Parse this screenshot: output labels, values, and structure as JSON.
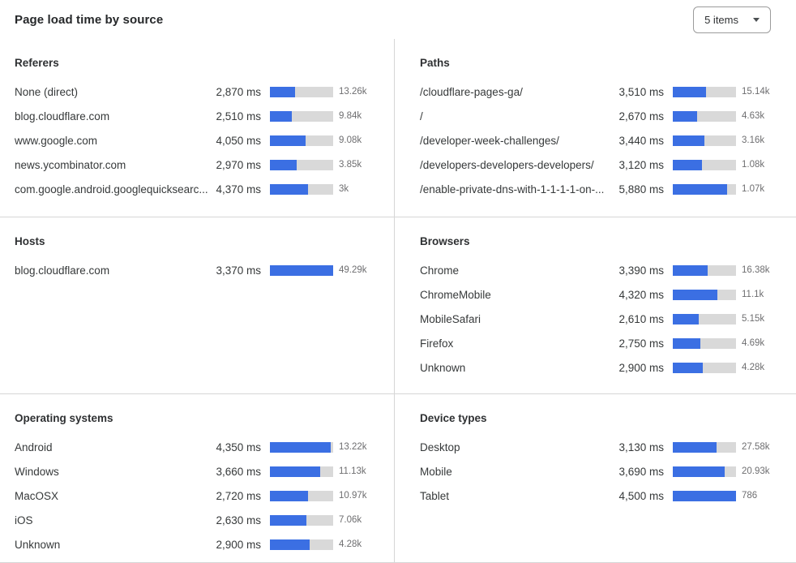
{
  "header": {
    "title": "Page load time by source",
    "dropdown": {
      "value": "5 items"
    }
  },
  "colors": {
    "bar_fill": "#3b6fe3",
    "bar_track": "#d9d9d9",
    "divider": "#d6d6d6",
    "text_primary": "#36393a",
    "text_secondary": "#6e6e70"
  },
  "sections": [
    {
      "id": "referers",
      "title": "Referers",
      "rows": [
        {
          "label": "None (direct)",
          "value": "2,870 ms",
          "count": "13.26k",
          "bar_pct": 40
        },
        {
          "label": "blog.cloudflare.com",
          "value": "2,510 ms",
          "count": "9.84k",
          "bar_pct": 35
        },
        {
          "label": "www.google.com",
          "value": "4,050 ms",
          "count": "9.08k",
          "bar_pct": 56
        },
        {
          "label": "news.ycombinator.com",
          "value": "2,970 ms",
          "count": "3.85k",
          "bar_pct": 42
        },
        {
          "label": "com.google.android.googlequicksearc...",
          "value": "4,370 ms",
          "count": "3k",
          "bar_pct": 60
        }
      ]
    },
    {
      "id": "paths",
      "title": "Paths",
      "rows": [
        {
          "label": "/cloudflare-pages-ga/",
          "value": "3,510 ms",
          "count": "15.14k",
          "bar_pct": 52
        },
        {
          "label": "/",
          "value": "2,670 ms",
          "count": "4.63k",
          "bar_pct": 39
        },
        {
          "label": "/developer-week-challenges/",
          "value": "3,440 ms",
          "count": "3.16k",
          "bar_pct": 50
        },
        {
          "label": "/developers-developers-developers/",
          "value": "3,120 ms",
          "count": "1.08k",
          "bar_pct": 46
        },
        {
          "label": "/enable-private-dns-with-1-1-1-1-on-...",
          "value": "5,880 ms",
          "count": "1.07k",
          "bar_pct": 86
        }
      ]
    },
    {
      "id": "hosts",
      "title": "Hosts",
      "rows": [
        {
          "label": "blog.cloudflare.com",
          "value": "3,370 ms",
          "count": "49.29k",
          "bar_pct": 100
        }
      ]
    },
    {
      "id": "browsers",
      "title": "Browsers",
      "rows": [
        {
          "label": "Chrome",
          "value": "3,390 ms",
          "count": "16.38k",
          "bar_pct": 55
        },
        {
          "label": "ChromeMobile",
          "value": "4,320 ms",
          "count": "11.1k",
          "bar_pct": 70
        },
        {
          "label": "MobileSafari",
          "value": "2,610 ms",
          "count": "5.15k",
          "bar_pct": 41
        },
        {
          "label": "Firefox",
          "value": "2,750 ms",
          "count": "4.69k",
          "bar_pct": 44
        },
        {
          "label": "Unknown",
          "value": "2,900 ms",
          "count": "4.28k",
          "bar_pct": 47
        }
      ]
    },
    {
      "id": "operating-systems",
      "title": "Operating systems",
      "rows": [
        {
          "label": "Android",
          "value": "4,350 ms",
          "count": "13.22k",
          "bar_pct": 96
        },
        {
          "label": "Windows",
          "value": "3,660 ms",
          "count": "11.13k",
          "bar_pct": 79
        },
        {
          "label": "MacOSX",
          "value": "2,720 ms",
          "count": "10.97k",
          "bar_pct": 60
        },
        {
          "label": "iOS",
          "value": "2,630 ms",
          "count": "7.06k",
          "bar_pct": 58
        },
        {
          "label": "Unknown",
          "value": "2,900 ms",
          "count": "4.28k",
          "bar_pct": 63
        }
      ]
    },
    {
      "id": "device-types",
      "title": "Device types",
      "rows": [
        {
          "label": "Desktop",
          "value": "3,130 ms",
          "count": "27.58k",
          "bar_pct": 69
        },
        {
          "label": "Mobile",
          "value": "3,690 ms",
          "count": "20.93k",
          "bar_pct": 82
        },
        {
          "label": "Tablet",
          "value": "4,500 ms",
          "count": "786",
          "bar_pct": 100
        }
      ]
    }
  ]
}
